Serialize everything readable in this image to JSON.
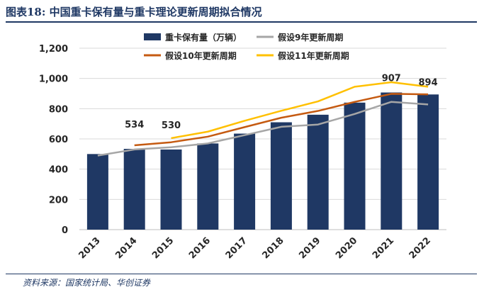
{
  "figure": {
    "title": "图表18:  中国重卡保有量与重卡理论更新周期拟合情况",
    "source": "资料来源：国家统计局、华创证券"
  },
  "chart_data": {
    "type": "bar",
    "categories": [
      "2013",
      "2014",
      "2015",
      "2016",
      "2017",
      "2018",
      "2019",
      "2020",
      "2021",
      "2022"
    ],
    "ylim": [
      0,
      1200
    ],
    "yticks": [
      0,
      200,
      400,
      600,
      800,
      1000,
      1200
    ],
    "ytick_labels": [
      "0",
      "200",
      "400",
      "600",
      "800",
      "1,000",
      "1,200"
    ],
    "grid": true,
    "legend_position": "top",
    "bars": {
      "name": "重卡保有量（万辆）",
      "color": "#1f3864",
      "values": [
        500,
        534,
        530,
        570,
        635,
        710,
        760,
        840,
        907,
        894
      ],
      "labels": [
        null,
        "534",
        "530",
        null,
        null,
        null,
        null,
        null,
        "907",
        "894"
      ]
    },
    "lines": [
      {
        "name": "假设9年更新周期",
        "color": "#a6a6a6",
        "values": [
          490,
          530,
          545,
          570,
          625,
          680,
          695,
          765,
          845,
          828
        ]
      },
      {
        "name": "假设10年更新周期",
        "color": "#c55a11",
        "values": [
          null,
          558,
          578,
          615,
          678,
          740,
          785,
          845,
          898,
          895
        ]
      },
      {
        "name": "假设11年更新周期",
        "color": "#ffc000",
        "values": [
          null,
          null,
          605,
          648,
          720,
          786,
          848,
          945,
          975,
          945
        ]
      }
    ]
  }
}
